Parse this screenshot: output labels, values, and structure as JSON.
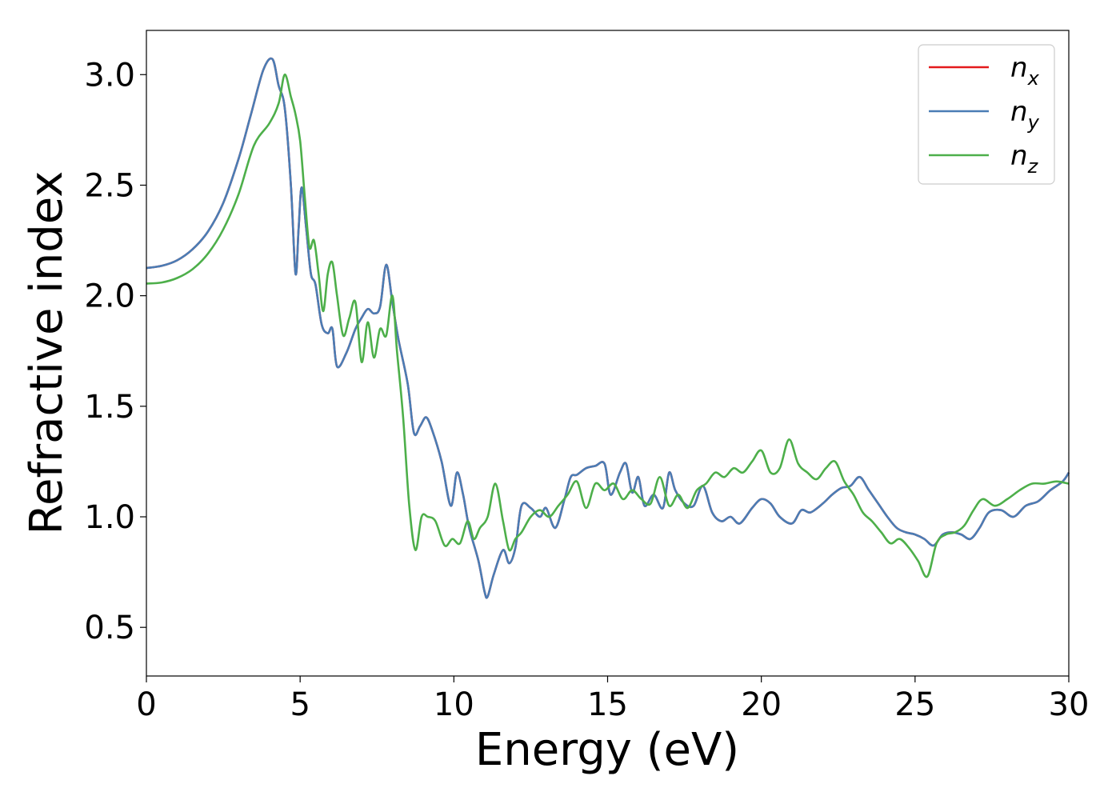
{
  "chart_data": {
    "type": "line",
    "xlabel": "Energy (eV)",
    "ylabel": "Refractive index",
    "xlim": [
      0,
      30
    ],
    "ylim": [
      0.28,
      3.2
    ],
    "xticks": [
      "0",
      "5",
      "10",
      "15",
      "20",
      "25",
      "30"
    ],
    "yticks": [
      "0.5",
      "1.0",
      "1.5",
      "2.0",
      "2.5",
      "3.0"
    ],
    "grid": false,
    "legend_position": "top-right",
    "series": [
      {
        "name": "n",
        "subscript": "x",
        "color": "#e41a1c",
        "x": [
          0,
          0.5,
          1,
          1.5,
          2,
          2.5,
          3,
          3.4,
          3.8,
          4.1,
          4.3,
          4.5,
          4.7,
          4.85,
          4.95,
          5.05,
          5.2,
          5.35,
          5.5,
          5.7,
          5.9,
          6.05,
          6.2,
          6.5,
          6.8,
          7.0,
          7.2,
          7.4,
          7.6,
          7.8,
          8.0,
          8.2,
          8.5,
          8.7,
          8.9,
          9.1,
          9.3,
          9.6,
          9.9,
          10.1,
          10.3,
          10.5,
          10.8,
          11.0,
          11.1,
          11.3,
          11.6,
          11.8,
          12.0,
          12.2,
          12.5,
          12.8,
          13.0,
          13.3,
          13.6,
          13.8,
          14.0,
          14.3,
          14.6,
          14.9,
          15.1,
          15.4,
          15.6,
          15.8,
          16.0,
          16.2,
          16.5,
          16.8,
          17.0,
          17.2,
          17.5,
          17.8,
          18.1,
          18.4,
          18.7,
          19.0,
          19.3,
          19.7,
          20.0,
          20.3,
          20.6,
          21.0,
          21.3,
          21.6,
          22.0,
          22.3,
          22.6,
          22.9,
          23.2,
          23.5,
          23.8,
          24.1,
          24.4,
          24.7,
          25.0,
          25.3,
          25.6,
          25.9,
          26.2,
          26.5,
          26.8,
          27.1,
          27.4,
          27.8,
          28.2,
          28.6,
          29.0,
          29.4,
          29.8,
          30.0
        ],
        "y": [
          2.125,
          2.135,
          2.16,
          2.21,
          2.29,
          2.42,
          2.62,
          2.82,
          3.02,
          3.07,
          2.95,
          2.85,
          2.5,
          2.1,
          2.3,
          2.49,
          2.3,
          2.1,
          2.05,
          1.87,
          1.83,
          1.85,
          1.68,
          1.74,
          1.85,
          1.9,
          1.94,
          1.92,
          1.95,
          2.14,
          1.97,
          1.8,
          1.6,
          1.38,
          1.41,
          1.45,
          1.39,
          1.25,
          1.05,
          1.2,
          1.1,
          0.95,
          0.8,
          0.66,
          0.64,
          0.74,
          0.85,
          0.79,
          0.86,
          1.05,
          1.04,
          1.0,
          1.04,
          0.95,
          1.08,
          1.18,
          1.19,
          1.22,
          1.23,
          1.24,
          1.1,
          1.2,
          1.24,
          1.11,
          1.18,
          1.05,
          1.1,
          1.04,
          1.2,
          1.12,
          1.06,
          1.05,
          1.14,
          1.02,
          0.98,
          1.0,
          0.97,
          1.04,
          1.08,
          1.06,
          1.0,
          0.97,
          1.03,
          1.02,
          1.06,
          1.1,
          1.13,
          1.14,
          1.18,
          1.12,
          1.06,
          1.0,
          0.95,
          0.93,
          0.92,
          0.9,
          0.87,
          0.92,
          0.93,
          0.92,
          0.9,
          0.95,
          1.02,
          1.03,
          1.0,
          1.05,
          1.07,
          1.12,
          1.16,
          1.2
        ]
      },
      {
        "name": "n",
        "subscript": "y",
        "color": "#4a7db5",
        "x": [
          0,
          0.5,
          1,
          1.5,
          2,
          2.5,
          3,
          3.4,
          3.8,
          4.1,
          4.3,
          4.5,
          4.7,
          4.85,
          4.95,
          5.05,
          5.2,
          5.35,
          5.5,
          5.7,
          5.9,
          6.05,
          6.2,
          6.5,
          6.8,
          7.0,
          7.2,
          7.4,
          7.6,
          7.8,
          8.0,
          8.2,
          8.5,
          8.7,
          8.9,
          9.1,
          9.3,
          9.6,
          9.9,
          10.1,
          10.3,
          10.5,
          10.8,
          11.0,
          11.1,
          11.3,
          11.6,
          11.8,
          12.0,
          12.2,
          12.5,
          12.8,
          13.0,
          13.3,
          13.6,
          13.8,
          14.0,
          14.3,
          14.6,
          14.9,
          15.1,
          15.4,
          15.6,
          15.8,
          16.0,
          16.2,
          16.5,
          16.8,
          17.0,
          17.2,
          17.5,
          17.8,
          18.1,
          18.4,
          18.7,
          19.0,
          19.3,
          19.7,
          20.0,
          20.3,
          20.6,
          21.0,
          21.3,
          21.6,
          22.0,
          22.3,
          22.6,
          22.9,
          23.2,
          23.5,
          23.8,
          24.1,
          24.4,
          24.7,
          25.0,
          25.3,
          25.6,
          25.9,
          26.2,
          26.5,
          26.8,
          27.1,
          27.4,
          27.8,
          28.2,
          28.6,
          29.0,
          29.4,
          29.8,
          30.0
        ],
        "y": [
          2.125,
          2.135,
          2.16,
          2.21,
          2.29,
          2.42,
          2.62,
          2.82,
          3.02,
          3.07,
          2.95,
          2.85,
          2.5,
          2.1,
          2.3,
          2.49,
          2.3,
          2.1,
          2.05,
          1.87,
          1.83,
          1.85,
          1.68,
          1.74,
          1.85,
          1.9,
          1.94,
          1.92,
          1.95,
          2.14,
          1.97,
          1.8,
          1.6,
          1.38,
          1.41,
          1.45,
          1.39,
          1.25,
          1.05,
          1.2,
          1.1,
          0.95,
          0.8,
          0.66,
          0.64,
          0.74,
          0.85,
          0.79,
          0.86,
          1.05,
          1.04,
          1.0,
          1.04,
          0.95,
          1.08,
          1.18,
          1.19,
          1.22,
          1.23,
          1.24,
          1.1,
          1.2,
          1.24,
          1.11,
          1.18,
          1.05,
          1.1,
          1.04,
          1.2,
          1.12,
          1.06,
          1.05,
          1.14,
          1.02,
          0.98,
          1.0,
          0.97,
          1.04,
          1.08,
          1.06,
          1.0,
          0.97,
          1.03,
          1.02,
          1.06,
          1.1,
          1.13,
          1.14,
          1.18,
          1.12,
          1.06,
          1.0,
          0.95,
          0.93,
          0.92,
          0.9,
          0.87,
          0.92,
          0.93,
          0.92,
          0.9,
          0.95,
          1.02,
          1.03,
          1.0,
          1.05,
          1.07,
          1.12,
          1.16,
          1.2
        ]
      },
      {
        "name": "n",
        "subscript": "z",
        "color": "#4daf4a",
        "x": [
          0,
          0.5,
          1,
          1.5,
          2,
          2.5,
          3,
          3.5,
          4.0,
          4.3,
          4.5,
          4.7,
          4.85,
          5.0,
          5.15,
          5.3,
          5.45,
          5.6,
          5.75,
          5.9,
          6.05,
          6.2,
          6.4,
          6.6,
          6.8,
          7.0,
          7.2,
          7.4,
          7.6,
          7.8,
          8.0,
          8.15,
          8.35,
          8.55,
          8.75,
          8.95,
          9.15,
          9.4,
          9.7,
          9.95,
          10.2,
          10.45,
          10.65,
          10.85,
          11.1,
          11.35,
          11.6,
          11.8,
          12.0,
          12.2,
          12.5,
          12.8,
          13.1,
          13.4,
          13.7,
          14.0,
          14.3,
          14.6,
          14.9,
          15.2,
          15.5,
          15.8,
          16.1,
          16.4,
          16.7,
          17.0,
          17.3,
          17.6,
          17.9,
          18.2,
          18.5,
          18.8,
          19.1,
          19.4,
          19.7,
          20.0,
          20.3,
          20.6,
          20.9,
          21.2,
          21.5,
          21.8,
          22.1,
          22.4,
          22.7,
          23.0,
          23.3,
          23.6,
          23.9,
          24.2,
          24.5,
          24.8,
          25.1,
          25.4,
          25.7,
          26.0,
          26.3,
          26.6,
          26.9,
          27.2,
          27.6,
          28.0,
          28.4,
          28.8,
          29.2,
          29.6,
          30.0
        ],
        "y": [
          2.055,
          2.06,
          2.08,
          2.12,
          2.19,
          2.3,
          2.46,
          2.68,
          2.78,
          2.87,
          3.0,
          2.9,
          2.82,
          2.7,
          2.45,
          2.22,
          2.25,
          2.1,
          1.93,
          2.1,
          2.15,
          2.0,
          1.82,
          1.9,
          1.97,
          1.7,
          1.88,
          1.72,
          1.85,
          1.82,
          2.0,
          1.75,
          1.45,
          1.05,
          0.85,
          1.0,
          1.0,
          0.98,
          0.87,
          0.9,
          0.88,
          0.98,
          0.9,
          0.95,
          1.0,
          1.15,
          0.98,
          0.85,
          0.9,
          0.93,
          1.0,
          1.03,
          1.0,
          1.05,
          1.1,
          1.16,
          1.04,
          1.15,
          1.12,
          1.15,
          1.08,
          1.12,
          1.08,
          1.06,
          1.18,
          1.05,
          1.1,
          1.04,
          1.12,
          1.15,
          1.2,
          1.18,
          1.22,
          1.2,
          1.25,
          1.3,
          1.2,
          1.22,
          1.35,
          1.24,
          1.2,
          1.17,
          1.22,
          1.25,
          1.16,
          1.1,
          1.02,
          0.98,
          0.93,
          0.88,
          0.9,
          0.86,
          0.8,
          0.73,
          0.88,
          0.92,
          0.93,
          0.96,
          1.03,
          1.08,
          1.05,
          1.08,
          1.12,
          1.15,
          1.15,
          1.16,
          1.15
        ]
      }
    ]
  }
}
